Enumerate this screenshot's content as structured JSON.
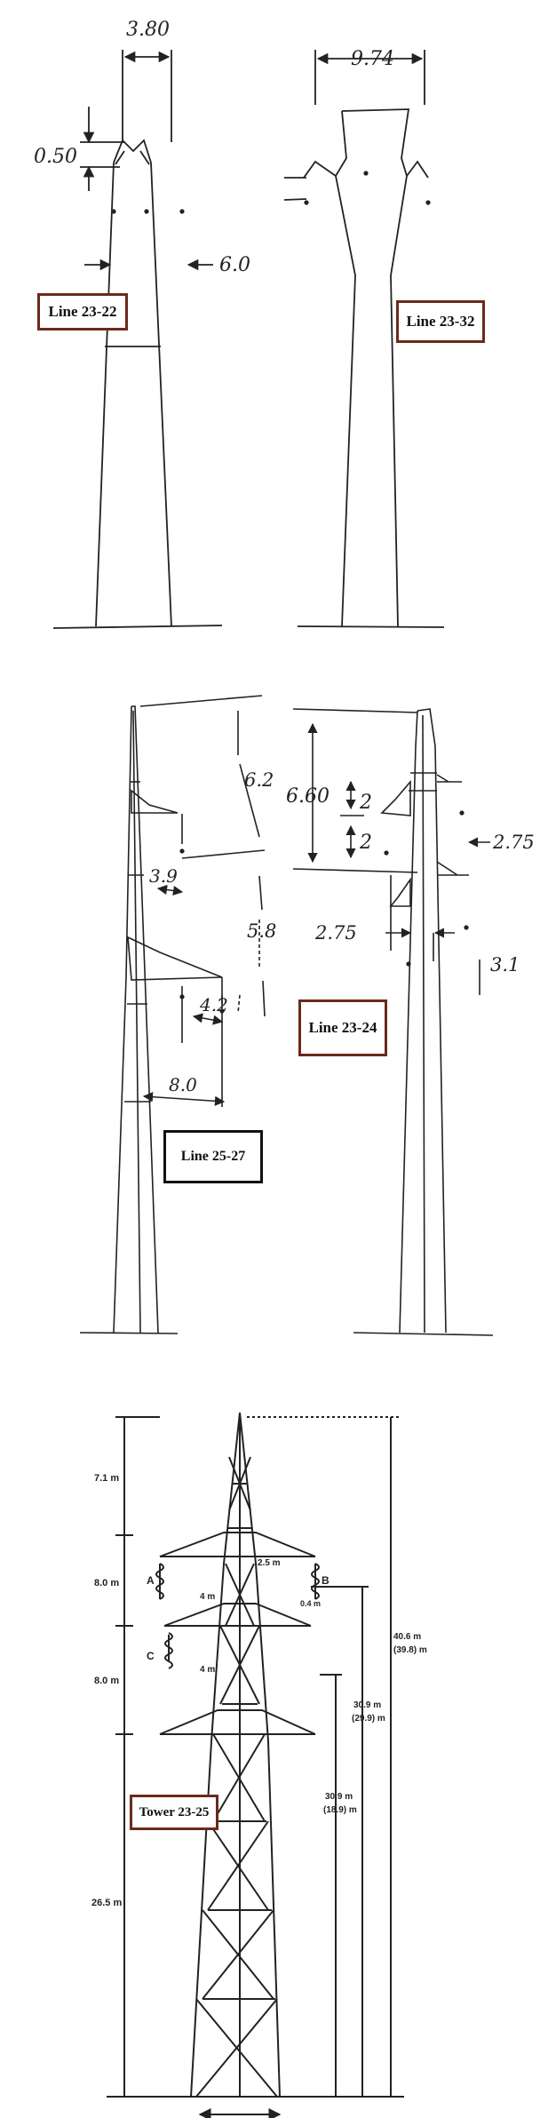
{
  "figures": {
    "line_23_22": {
      "label": "Line 23-22",
      "dims": {
        "top_width": "3.80",
        "offset": "0.50",
        "side": "6.0"
      }
    },
    "line_23_32": {
      "label": "Line 23-32",
      "dims": {
        "top_width": "9.74"
      }
    },
    "line_25_27": {
      "label": "Line 25-27",
      "dims": {
        "upper_gap": "6.2",
        "lower_gap": "5.8",
        "arm1": "3.9",
        "arm2": "4.2",
        "arm3": "8.0"
      }
    },
    "line_23_24": {
      "label": "Line 23-24",
      "dims": {
        "height": "6.60",
        "span_a": "2",
        "span_b": "2",
        "right_a": "2.75",
        "left": "2.75",
        "right_b": "3.1"
      }
    },
    "tower_23_25": {
      "label": "Tower 23-25",
      "left_dims": [
        "7.1 m",
        "8.0 m",
        "8.0 m",
        "26.5 m"
      ],
      "phases": [
        "A",
        "B",
        "C"
      ],
      "arm_dims": {
        "top": "2.5 m",
        "mid1": "4 m",
        "mid2": "4 m",
        "ins": "0.4 m"
      },
      "right_dims": {
        "overall": "40.6 m",
        "overall_alt": "(39.8) m",
        "b_height": "30.9 m",
        "b_height_alt": "(29.9) m",
        "c_height": "30.9 m",
        "c_height_alt": "(18.9) m"
      }
    }
  }
}
